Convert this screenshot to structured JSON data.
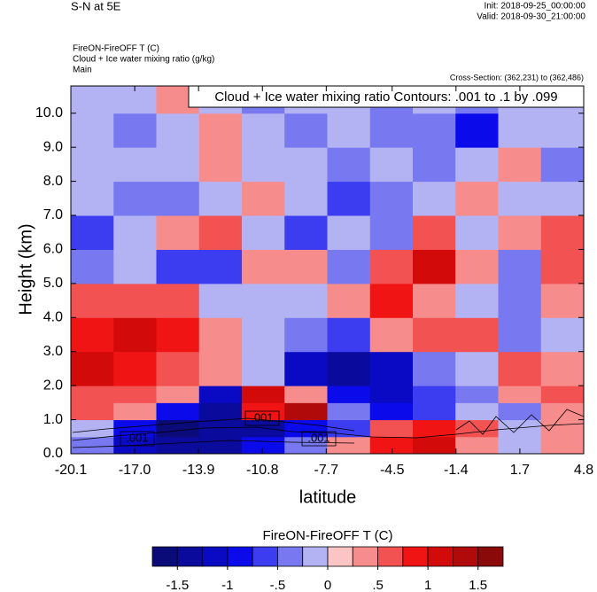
{
  "chart_data": {
    "type": "heatmap",
    "title": "S-N at 5E",
    "init": "Init: 2018-09-25_00:00:00",
    "valid": "Valid: 2018-09-30_21:00:00",
    "field_label": "FireON-FireOFF T   (C)",
    "contour_field_label": "Cloud + Ice water mixing ratio   (g/kg)",
    "domain": "Main",
    "cross_section": "Cross-Section: (362,231) to (362,486)",
    "contour_info": "Cloud + Ice water mixing ratio Contours: .001 to .1 by .099",
    "contour_labels": [
      ".001",
      ".001",
      ".001"
    ],
    "xlabel": "latitude",
    "ylabel": "Height (km)",
    "xlim": [
      -20.1,
      4.8
    ],
    "ylim": [
      0,
      10.8
    ],
    "xticks": [
      -20.1,
      {
        "value": -17,
        "label": "-17.0"
      },
      -13.9,
      -10.8,
      -7.7,
      -4.5,
      -1.4,
      1.7,
      4.8
    ],
    "yticks": [
      {
        "value": 0,
        "label": "0.0"
      },
      {
        "value": 1,
        "label": "1.0"
      },
      {
        "value": 2,
        "label": "2.0"
      },
      {
        "value": 3,
        "label": "3.0"
      },
      {
        "value": 4,
        "label": "4.0"
      },
      {
        "value": 5,
        "label": "5.0"
      },
      {
        "value": 6,
        "label": "6.0"
      },
      {
        "value": 7,
        "label": "7.0"
      },
      {
        "value": 8,
        "label": "8.0"
      },
      {
        "value": 9,
        "label": "9.0"
      },
      {
        "value": 10,
        "label": "10.0"
      }
    ],
    "x_edges": [
      -20.1,
      -18.025,
      -15.95,
      -13.875,
      -11.8,
      -9.725,
      -7.65,
      -5.575,
      -3.5,
      -1.425,
      0.65,
      2.725,
      4.8
    ],
    "y_edges": [
      0,
      0.5,
      1,
      1.5,
      2,
      3,
      4,
      5,
      6,
      7,
      8,
      9,
      10,
      10.8
    ],
    "values": [
      [
        -0.5,
        -1.25,
        -1.5,
        -1.5,
        -1.0,
        -0.5,
        0.25,
        0.75,
        1.0,
        0.25,
        -0.25,
        0.25
      ],
      [
        -0.25,
        -1.0,
        -1.75,
        -1.5,
        -1.5,
        -1.0,
        -0.75,
        0.5,
        0.75,
        0.5,
        -0.25,
        0.25
      ],
      [
        0.5,
        0.25,
        -1.0,
        -1.5,
        0.75,
        1.25,
        -0.5,
        -1.0,
        -0.75,
        -0.25,
        -0.5,
        0.25
      ],
      [
        0.5,
        0.5,
        0.25,
        -1.25,
        1.0,
        0.25,
        -1.0,
        -1.25,
        -0.75,
        -0.5,
        0.25,
        0.5
      ],
      [
        1.0,
        0.75,
        0.5,
        0.25,
        -0.25,
        -1.25,
        -1.5,
        -1.25,
        -0.5,
        -0.25,
        0.5,
        0.25
      ],
      [
        0.75,
        1.0,
        0.75,
        0.25,
        -0.25,
        -0.5,
        -0.75,
        0.25,
        0.5,
        0.5,
        -0.5,
        -0.25
      ],
      [
        0.5,
        0.5,
        0.5,
        -0.25,
        -0.25,
        -0.25,
        0.25,
        0.75,
        0.25,
        -0.25,
        -0.5,
        0.25
      ],
      [
        -0.5,
        -0.25,
        -0.75,
        -0.75,
        0.25,
        0.25,
        -0.5,
        0.5,
        1.0,
        0.25,
        -0.5,
        0.5
      ],
      [
        -0.75,
        -0.25,
        0.25,
        0.5,
        -0.25,
        -0.75,
        -0.25,
        -0.5,
        0.5,
        -0.25,
        0.25,
        0.5
      ],
      [
        -0.25,
        -0.5,
        -0.5,
        -0.25,
        0.25,
        -0.25,
        -0.75,
        -0.5,
        -0.25,
        0.25,
        -0.25,
        -0.25
      ],
      [
        -0.25,
        -0.25,
        -0.25,
        0.25,
        -0.25,
        -0.25,
        -0.5,
        -0.25,
        -0.5,
        -0.25,
        0.25,
        -0.5
      ],
      [
        -0.25,
        -0.5,
        -0.25,
        0.25,
        -0.25,
        -0.5,
        -0.25,
        -0.5,
        -0.5,
        -1.0,
        -0.25,
        -0.25
      ],
      [
        -0.25,
        -0.25,
        0.25,
        -0.25,
        -0.5,
        -0.25,
        -0.25,
        -0.5,
        -0.25,
        -0.5,
        -0.25,
        -0.25
      ]
    ],
    "colorbar": {
      "title": "FireON-FireOFF T  (C)",
      "levels": [
        -1.75,
        -1.5,
        -1.25,
        -1.0,
        -0.75,
        -0.5,
        -0.25,
        0,
        0.25,
        0.5,
        0.75,
        1.0,
        1.25,
        1.5,
        1.75
      ],
      "colors": [
        "#0a0a78",
        "#0a0a9c",
        "#0a0ac4",
        "#0a0aeb",
        "#3c3cf0",
        "#7878f0",
        "#b3b3f4",
        "#fcc5c5",
        "#f78c8c",
        "#f25252",
        "#f01414",
        "#d20a0a",
        "#b00a0a",
        "#8a0a0a"
      ],
      "ticks": [
        -1.5,
        -1,
        {
          "value": -0.5,
          "label": "-.5"
        },
        0,
        {
          "value": 0.5,
          "label": ".5"
        },
        1,
        1.5
      ]
    }
  }
}
